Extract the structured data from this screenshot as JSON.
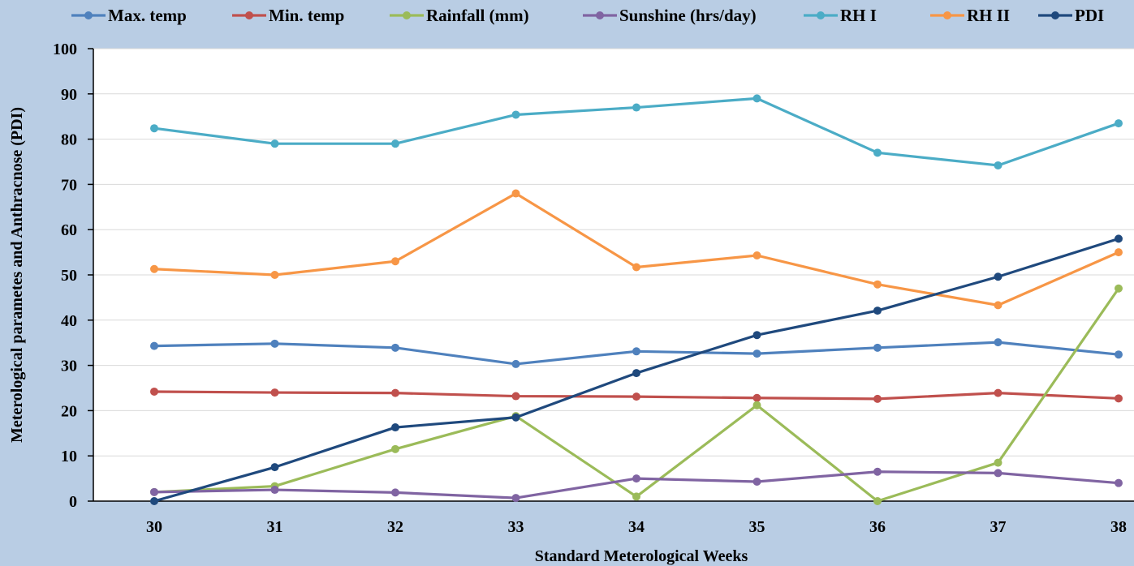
{
  "chart_data": {
    "type": "line",
    "xlabel": "Standard Meterological Weeks",
    "ylabel": "Meterological parametes and Anthracnose (PDI)",
    "categories": [
      "30",
      "31",
      "32",
      "33",
      "34",
      "35",
      "36",
      "37",
      "38"
    ],
    "ylim": [
      0,
      100
    ],
    "yticks": [
      "0",
      "10",
      "20",
      "30",
      "40",
      "50",
      "60",
      "70",
      "80",
      "90",
      "100"
    ],
    "grid": true,
    "legend_position": "top",
    "series": [
      {
        "name": "Max. temp",
        "color": "#4f81bd",
        "values": [
          34.3,
          34.8,
          33.9,
          30.3,
          33.1,
          32.6,
          33.9,
          35.1,
          32.4
        ]
      },
      {
        "name": "Min. temp",
        "color": "#c0504d",
        "values": [
          24.2,
          24.0,
          23.9,
          23.2,
          23.1,
          22.8,
          22.6,
          23.9,
          22.7
        ]
      },
      {
        "name": "Rainfall (mm)",
        "color": "#9bbb59",
        "values": [
          2.0,
          3.3,
          11.5,
          18.8,
          1.0,
          21.2,
          0.0,
          8.5,
          47.0
        ]
      },
      {
        "name": "Sunshine (hrs/day)",
        "color": "#8064a2",
        "values": [
          2.0,
          2.5,
          1.9,
          0.7,
          5.0,
          4.3,
          6.5,
          6.2,
          4.0
        ]
      },
      {
        "name": "RH I",
        "color": "#4bacc6",
        "values": [
          82.4,
          79.0,
          79.0,
          85.4,
          87.0,
          89.0,
          77.0,
          74.2,
          83.5
        ]
      },
      {
        "name": "RH II",
        "color": "#f79646",
        "values": [
          51.3,
          50.0,
          53.0,
          68.0,
          51.7,
          54.3,
          47.9,
          43.3,
          55.0
        ]
      },
      {
        "name": "PDI",
        "color": "#1f497d",
        "values": [
          0.0,
          7.5,
          16.3,
          18.5,
          28.3,
          36.7,
          42.1,
          49.6,
          58.0
        ]
      }
    ]
  }
}
